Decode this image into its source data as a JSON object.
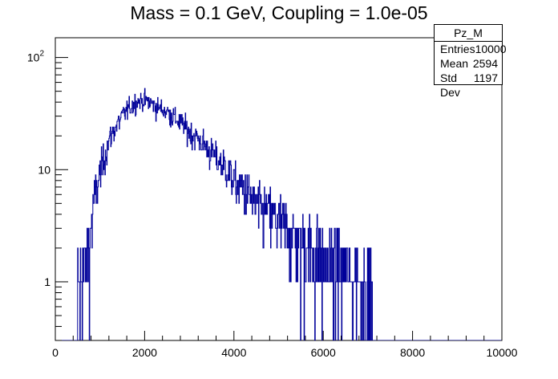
{
  "chart_data": {
    "type": "bar",
    "title": "Mass = 0.1 GeV, Coupling = 1.0e-05",
    "xlabel": "",
    "ylabel": "",
    "xlim": [
      0,
      10000
    ],
    "ylim": [
      0.3,
      150
    ],
    "y_scale": "log",
    "x_ticks": [
      "0",
      "2000",
      "4000",
      "6000",
      "8000",
      "10000"
    ],
    "y_ticks": [
      {
        "value": 1,
        "label": "1"
      },
      {
        "value": 10,
        "label": "10"
      },
      {
        "value": 100,
        "label": "10",
        "exponent": "2"
      }
    ],
    "bin_width": 10,
    "grid": false,
    "legend": "none",
    "line_color": "#000099",
    "envelope": {
      "x": [
        500,
        700,
        800,
        1000,
        1200,
        1500,
        1800,
        2000,
        2200,
        2500,
        3000,
        3500,
        4000,
        4500,
        5000,
        5500,
        6000,
        6500,
        7000,
        7100
      ],
      "y": [
        0.8,
        1.5,
        3,
        9,
        18,
        30,
        40,
        42,
        38,
        33,
        22,
        14,
        8,
        5,
        3.5,
        2.3,
        1.6,
        1.2,
        0.9,
        0.9
      ]
    },
    "stats": {
      "name": "Pz_M",
      "entries_label": "Entries",
      "entries": "10000",
      "mean_label": "Mean",
      "mean": "2594",
      "stddev_label": "Std Dev",
      "stddev": "1197"
    }
  }
}
